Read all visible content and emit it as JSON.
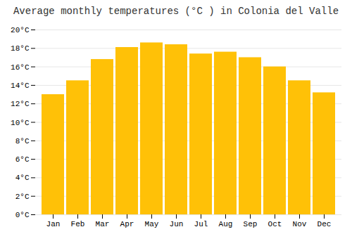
{
  "chart_data": {
    "type": "bar",
    "title": "Average monthly temperatures (°C ) in Colonia del Valle",
    "categories": [
      "Jan",
      "Feb",
      "Mar",
      "Apr",
      "May",
      "Jun",
      "Jul",
      "Aug",
      "Sep",
      "Oct",
      "Nov",
      "Dec"
    ],
    "values": [
      13.0,
      14.5,
      16.8,
      18.1,
      18.6,
      18.4,
      17.4,
      17.6,
      17.0,
      16.0,
      14.5,
      13.2
    ],
    "color": "#FFC107",
    "ylim": [
      0,
      20
    ],
    "yticks": [
      {
        "value": 0,
        "label": "0°C"
      },
      {
        "value": 2,
        "label": "2°C"
      },
      {
        "value": 4,
        "label": "4°C"
      },
      {
        "value": 6,
        "label": "6°C"
      },
      {
        "value": 8,
        "label": "8°C"
      },
      {
        "value": 10,
        "label": "10°C"
      },
      {
        "value": 12,
        "label": "12°C"
      },
      {
        "value": 14,
        "label": "14°C"
      },
      {
        "value": 16,
        "label": "16°C"
      },
      {
        "value": 18,
        "label": "18°C"
      },
      {
        "value": 20,
        "label": "20°C"
      }
    ],
    "grid": true
  }
}
